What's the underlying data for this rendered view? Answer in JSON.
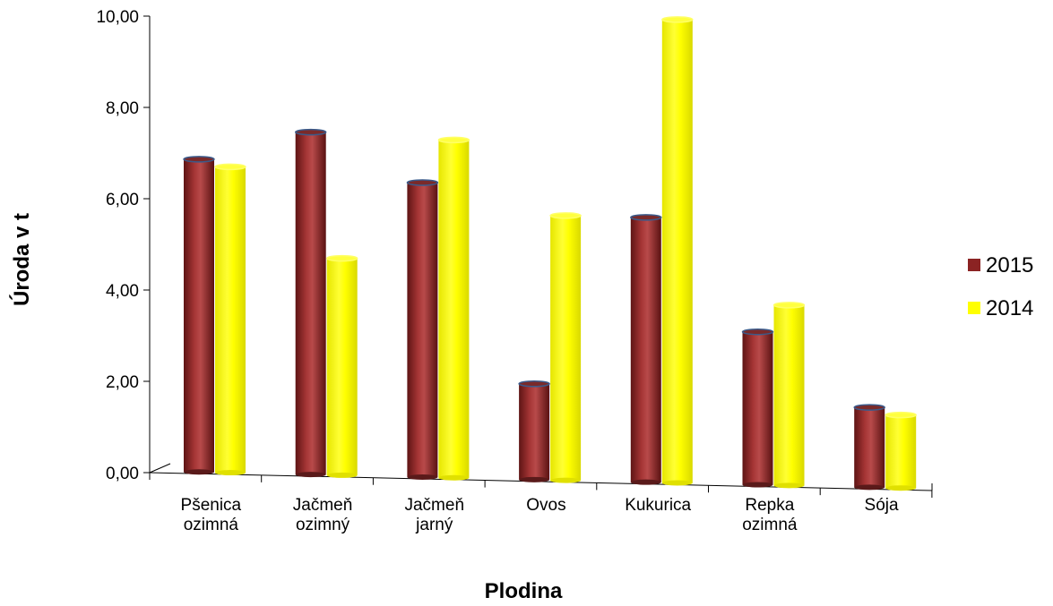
{
  "chart_data": {
    "type": "bar",
    "title": "",
    "xlabel": "Plodina",
    "ylabel": "Úroda v t",
    "ylim": [
      0,
      10
    ],
    "yticks": [
      "0,00",
      "2,00",
      "4,00",
      "6,00",
      "8,00",
      "10,00"
    ],
    "categories": [
      [
        "Pšenica",
        "ozimná"
      ],
      [
        "Jačmeň",
        "ozimný"
      ],
      [
        "Jačmeň",
        "jarný"
      ],
      [
        "Ovos"
      ],
      [
        "Kukurica"
      ],
      [
        "Repka",
        "ozimná"
      ],
      [
        "Sója"
      ]
    ],
    "series": [
      {
        "name": "2015",
        "color": "#8B2323",
        "values": [
          6.85,
          7.5,
          6.45,
          2.1,
          5.8,
          3.35,
          1.75
        ]
      },
      {
        "name": "2014",
        "color": "#FFFF00",
        "values": [
          6.7,
          4.75,
          7.4,
          5.8,
          10.15,
          3.95,
          1.6
        ]
      }
    ],
    "legend_position": "right",
    "grid": false
  }
}
